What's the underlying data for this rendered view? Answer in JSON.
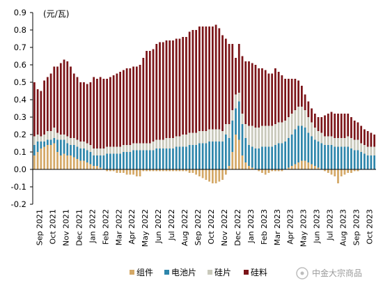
{
  "chart_data": {
    "type": "bar",
    "stacked": true,
    "unit": "(元/瓦)",
    "ylim": [
      -0.2,
      0.9
    ],
    "yticks": [
      "0.9",
      "0.8",
      "0.7",
      "0.6",
      "0.5",
      "0.4",
      "0.3",
      "0.2",
      "0.1",
      "0.0",
      "-0.1",
      "-0.2"
    ],
    "grid": false,
    "legend_position": "bottom",
    "x_tick_labels": [
      "Sep 2021",
      "Oct 2021",
      "Nov 2021",
      "Dec 2021",
      "Jan 2022",
      "Feb 2022",
      "Mar 2022",
      "Apr 2022",
      "May 2022",
      "Jun 2022",
      "Jul 2022",
      "Aug 2022",
      "Sep 2022",
      "Oct 2022",
      "Nov 2022",
      "Dec 2022",
      "Jan 2023",
      "Feb 2023",
      "Mar 2023",
      "Apr 2023",
      "May 2023",
      "Jun 2023",
      "Jul 2023",
      "Aug 2023",
      "Sep 2023",
      "Oct 2023"
    ],
    "series": [
      {
        "name": "组件",
        "color": "#D4A866",
        "values": [
          0.08,
          0.1,
          0.12,
          0.13,
          0.14,
          0.14,
          0.15,
          0.1,
          0.08,
          0.09,
          0.08,
          0.08,
          0.07,
          0.06,
          0.05,
          0.05,
          0.04,
          0.03,
          0.02,
          0.02,
          0.01,
          0.0,
          -0.01,
          -0.01,
          -0.01,
          -0.02,
          -0.02,
          -0.02,
          -0.03,
          -0.03,
          -0.03,
          -0.04,
          -0.04,
          -0.01,
          -0.01,
          -0.01,
          -0.01,
          -0.01,
          -0.01,
          -0.01,
          -0.01,
          -0.01,
          -0.01,
          -0.01,
          -0.01,
          -0.01,
          -0.01,
          -0.02,
          -0.02,
          -0.03,
          -0.04,
          -0.05,
          -0.06,
          -0.07,
          -0.08,
          -0.08,
          -0.07,
          -0.06,
          -0.03,
          0.02,
          0.1,
          0.2,
          0.17,
          0.08,
          0.04,
          0.02,
          0.01,
          0.0,
          -0.01,
          -0.02,
          -0.03,
          -0.02,
          -0.01,
          -0.01,
          -0.01,
          -0.01,
          0.0,
          0.01,
          0.02,
          0.03,
          0.04,
          0.05,
          0.05,
          0.04,
          0.03,
          0.02,
          0.01,
          0.0,
          -0.01,
          -0.02,
          -0.03,
          -0.04,
          -0.08,
          -0.04,
          -0.03,
          -0.02,
          -0.02,
          -0.01,
          -0.01,
          0.0,
          0.0,
          0.0,
          0.0,
          0.0
        ]
      },
      {
        "name": "电池片",
        "color": "#2E86AB",
        "values": [
          0.06,
          0.06,
          0.04,
          0.03,
          0.03,
          0.03,
          0.03,
          0.07,
          0.09,
          0.08,
          0.07,
          0.06,
          0.07,
          0.07,
          0.07,
          0.07,
          0.07,
          0.07,
          0.06,
          0.06,
          0.07,
          0.08,
          0.09,
          0.09,
          0.09,
          0.09,
          0.09,
          0.1,
          0.1,
          0.1,
          0.11,
          0.11,
          0.11,
          0.11,
          0.11,
          0.11,
          0.11,
          0.12,
          0.12,
          0.12,
          0.12,
          0.12,
          0.12,
          0.13,
          0.13,
          0.13,
          0.13,
          0.14,
          0.14,
          0.14,
          0.15,
          0.15,
          0.15,
          0.16,
          0.16,
          0.16,
          0.16,
          0.16,
          0.2,
          0.16,
          0.18,
          0.15,
          0.22,
          0.18,
          0.14,
          0.12,
          0.12,
          0.12,
          0.12,
          0.13,
          0.13,
          0.13,
          0.13,
          0.14,
          0.15,
          0.15,
          0.16,
          0.17,
          0.18,
          0.2,
          0.21,
          0.2,
          0.19,
          0.17,
          0.16,
          0.15,
          0.15,
          0.15,
          0.14,
          0.14,
          0.14,
          0.13,
          0.13,
          0.13,
          0.13,
          0.13,
          0.12,
          0.11,
          0.11,
          0.1,
          0.09,
          0.08,
          0.08,
          0.08
        ]
      },
      {
        "name": "硅片",
        "color": "#C9C9BB",
        "values": [
          0.05,
          0.04,
          0.03,
          0.04,
          0.05,
          0.05,
          0.06,
          0.04,
          0.03,
          0.03,
          0.04,
          0.04,
          0.04,
          0.04,
          0.04,
          0.04,
          0.04,
          0.04,
          0.04,
          0.04,
          0.04,
          0.04,
          0.04,
          0.04,
          0.04,
          0.04,
          0.04,
          0.04,
          0.04,
          0.04,
          0.04,
          0.04,
          0.04,
          0.04,
          0.04,
          0.04,
          0.05,
          0.05,
          0.05,
          0.05,
          0.06,
          0.06,
          0.06,
          0.06,
          0.06,
          0.07,
          0.07,
          0.07,
          0.07,
          0.07,
          0.07,
          0.07,
          0.07,
          0.07,
          0.07,
          0.07,
          0.07,
          0.06,
          0.06,
          0.08,
          0.06,
          0.08,
          0.05,
          0.06,
          0.08,
          0.11,
          0.12,
          0.12,
          0.12,
          0.12,
          0.12,
          0.12,
          0.12,
          0.12,
          0.12,
          0.12,
          0.12,
          0.12,
          0.12,
          0.11,
          0.11,
          0.11,
          0.1,
          0.09,
          0.08,
          0.07,
          0.06,
          0.06,
          0.05,
          0.05,
          0.05,
          0.05,
          0.05,
          0.05,
          0.05,
          0.06,
          0.06,
          0.06,
          0.06,
          0.05,
          0.05,
          0.05,
          0.05,
          0.05
        ]
      },
      {
        "name": "硅料",
        "color": "#7B1418",
        "values": [
          0.31,
          0.26,
          0.26,
          0.31,
          0.31,
          0.33,
          0.35,
          0.38,
          0.41,
          0.43,
          0.43,
          0.41,
          0.37,
          0.36,
          0.34,
          0.34,
          0.34,
          0.36,
          0.41,
          0.4,
          0.41,
          0.4,
          0.39,
          0.4,
          0.41,
          0.42,
          0.43,
          0.43,
          0.44,
          0.44,
          0.44,
          0.44,
          0.45,
          0.49,
          0.53,
          0.53,
          0.53,
          0.55,
          0.56,
          0.56,
          0.56,
          0.56,
          0.56,
          0.56,
          0.56,
          0.56,
          0.56,
          0.58,
          0.59,
          0.59,
          0.6,
          0.6,
          0.6,
          0.59,
          0.59,
          0.6,
          0.58,
          0.55,
          0.49,
          0.46,
          0.38,
          0.21,
          0.28,
          0.33,
          0.36,
          0.37,
          0.36,
          0.36,
          0.34,
          0.33,
          0.32,
          0.3,
          0.3,
          0.32,
          0.29,
          0.27,
          0.24,
          0.22,
          0.2,
          0.18,
          0.15,
          0.12,
          0.09,
          0.09,
          0.08,
          0.08,
          0.08,
          0.09,
          0.12,
          0.13,
          0.14,
          0.14,
          0.14,
          0.14,
          0.14,
          0.13,
          0.12,
          0.11,
          0.1,
          0.1,
          0.09,
          0.09,
          0.08,
          0.07
        ]
      }
    ]
  },
  "watermark": "中金大宗商品"
}
